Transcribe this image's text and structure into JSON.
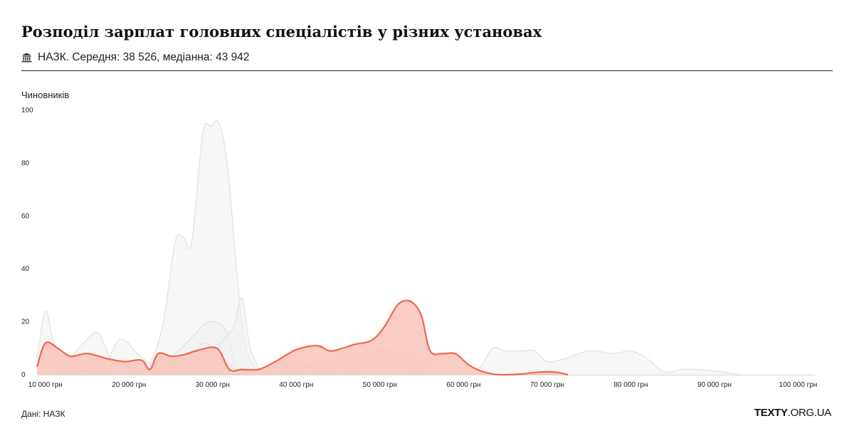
{
  "header": {
    "title": "Розподіл зарплат головних спеціалістів у різних установах",
    "subtitle": "НАЗК. Середня: 38 526, медіанна: 43 942",
    "icon": "bank-building-icon"
  },
  "footer": {
    "source": "Дані: НАЗК",
    "brand_bold": "TEXTY",
    "brand_light": ".ORG.UA"
  },
  "colors": {
    "highlight_stroke": "#f0664e",
    "highlight_fill": "#f8c4b9",
    "background_stroke": "#e2e2e2",
    "background_fill": "#f0f0f0"
  },
  "chart_data": {
    "type": "area",
    "ylabel": "Чиновників",
    "xlabel": "",
    "xlim": [
      9000,
      102000
    ],
    "ylim": [
      0,
      100
    ],
    "x_ticks": [
      10000,
      20000,
      30000,
      40000,
      50000,
      60000,
      70000,
      80000,
      90000,
      100000
    ],
    "x_tick_labels": [
      "10 000 грн",
      "20 000 грн",
      "30 000 грн",
      "40 000 грн",
      "50 000 грн",
      "60 000 грн",
      "70 000 грн",
      "80 000 грн",
      "90 000 грн",
      "100 000 грн"
    ],
    "y_ticks": [
      0,
      20,
      40,
      60,
      80,
      100
    ],
    "y_tick_labels": [
      "0",
      "20",
      "40",
      "60",
      "80",
      "100"
    ],
    "grid": false,
    "highlighted_series": "НАЗК",
    "series": [
      {
        "name": "НАЗК",
        "highlight": true,
        "x": [
          9000,
          10000,
          11500,
          13000,
          15000,
          17500,
          19500,
          21500,
          22500,
          23500,
          25000,
          26500,
          28000,
          30500,
          32000,
          33500,
          35500,
          37500,
          40000,
          42500,
          44000,
          45500,
          47000,
          49000,
          50500,
          52000,
          53000,
          54000,
          55000,
          56000,
          57500,
          59000,
          60500,
          62000,
          63500,
          65000,
          67000,
          69000,
          71000,
          72500
        ],
        "y": [
          3,
          12,
          10,
          7,
          8,
          6,
          5,
          5.5,
          2,
          8,
          7,
          7.5,
          9,
          10,
          2,
          2,
          2,
          5,
          9.5,
          11,
          9,
          10,
          11.5,
          13,
          18,
          26,
          28,
          27,
          22,
          9,
          8,
          8,
          4,
          1.5,
          0.3,
          0,
          0.3,
          1,
          1,
          0
        ]
      },
      {
        "x": [
          22000,
          24000,
          25500,
          26500,
          27500,
          28800,
          29800,
          30800,
          31800,
          33000,
          34000,
          35500,
          37500
        ],
        "y": [
          0,
          18,
          50,
          52,
          50,
          91,
          94,
          95,
          78,
          35,
          10,
          2,
          0
        ]
      },
      {
        "x": [
          9000,
          10000,
          11000,
          12500,
          14000
        ],
        "y": [
          6,
          24,
          12,
          3,
          0
        ]
      },
      {
        "x": [
          12000,
          14000,
          16000,
          17000,
          18000,
          20000,
          22000
        ],
        "y": [
          2,
          10,
          16,
          12,
          5,
          3,
          0
        ]
      },
      {
        "x": [
          15000,
          17000,
          18500,
          19500,
          21000,
          22500,
          24000
        ],
        "y": [
          0,
          3,
          12,
          13,
          8,
          4,
          0
        ]
      },
      {
        "x": [
          20000,
          23000,
          25500,
          27500,
          29500,
          31500,
          33000
        ],
        "y": [
          0,
          4,
          8,
          14,
          20,
          17,
          0
        ]
      },
      {
        "x": [
          29000,
          31000,
          32500,
          33500,
          34500,
          36000
        ],
        "y": [
          0,
          12,
          18,
          29,
          10,
          0
        ]
      },
      {
        "x": [
          38000,
          41000,
          44000,
          47000,
          50000,
          53000,
          56000,
          58000
        ],
        "y": [
          0,
          3,
          6,
          8,
          9,
          8,
          5,
          0
        ]
      },
      {
        "x": [
          60000,
          62000,
          63500,
          65000,
          67000,
          68500,
          70000,
          72000,
          75000,
          78000,
          80000,
          82000,
          84000,
          86000,
          88000,
          91000,
          93000
        ],
        "y": [
          0,
          3,
          10,
          9,
          9,
          9,
          5,
          6,
          9,
          8,
          9,
          6,
          1,
          2,
          2,
          1,
          0
        ]
      },
      {
        "x": [
          9000,
          11000,
          13500,
          16000,
          18000
        ],
        "y": [
          3,
          5,
          2,
          1,
          0
        ]
      },
      {
        "x": [
          24000,
          27000,
          29000,
          31000,
          33500
        ],
        "y": [
          0,
          5,
          12,
          6,
          0
        ]
      },
      {
        "x": [
          33000,
          36000,
          39000,
          42000,
          45000
        ],
        "y": [
          0,
          2,
          5,
          3,
          0
        ]
      },
      {
        "x": [
          46000,
          48000,
          50000,
          52000,
          55000
        ],
        "y": [
          0,
          4,
          10,
          6,
          0
        ]
      }
    ]
  }
}
